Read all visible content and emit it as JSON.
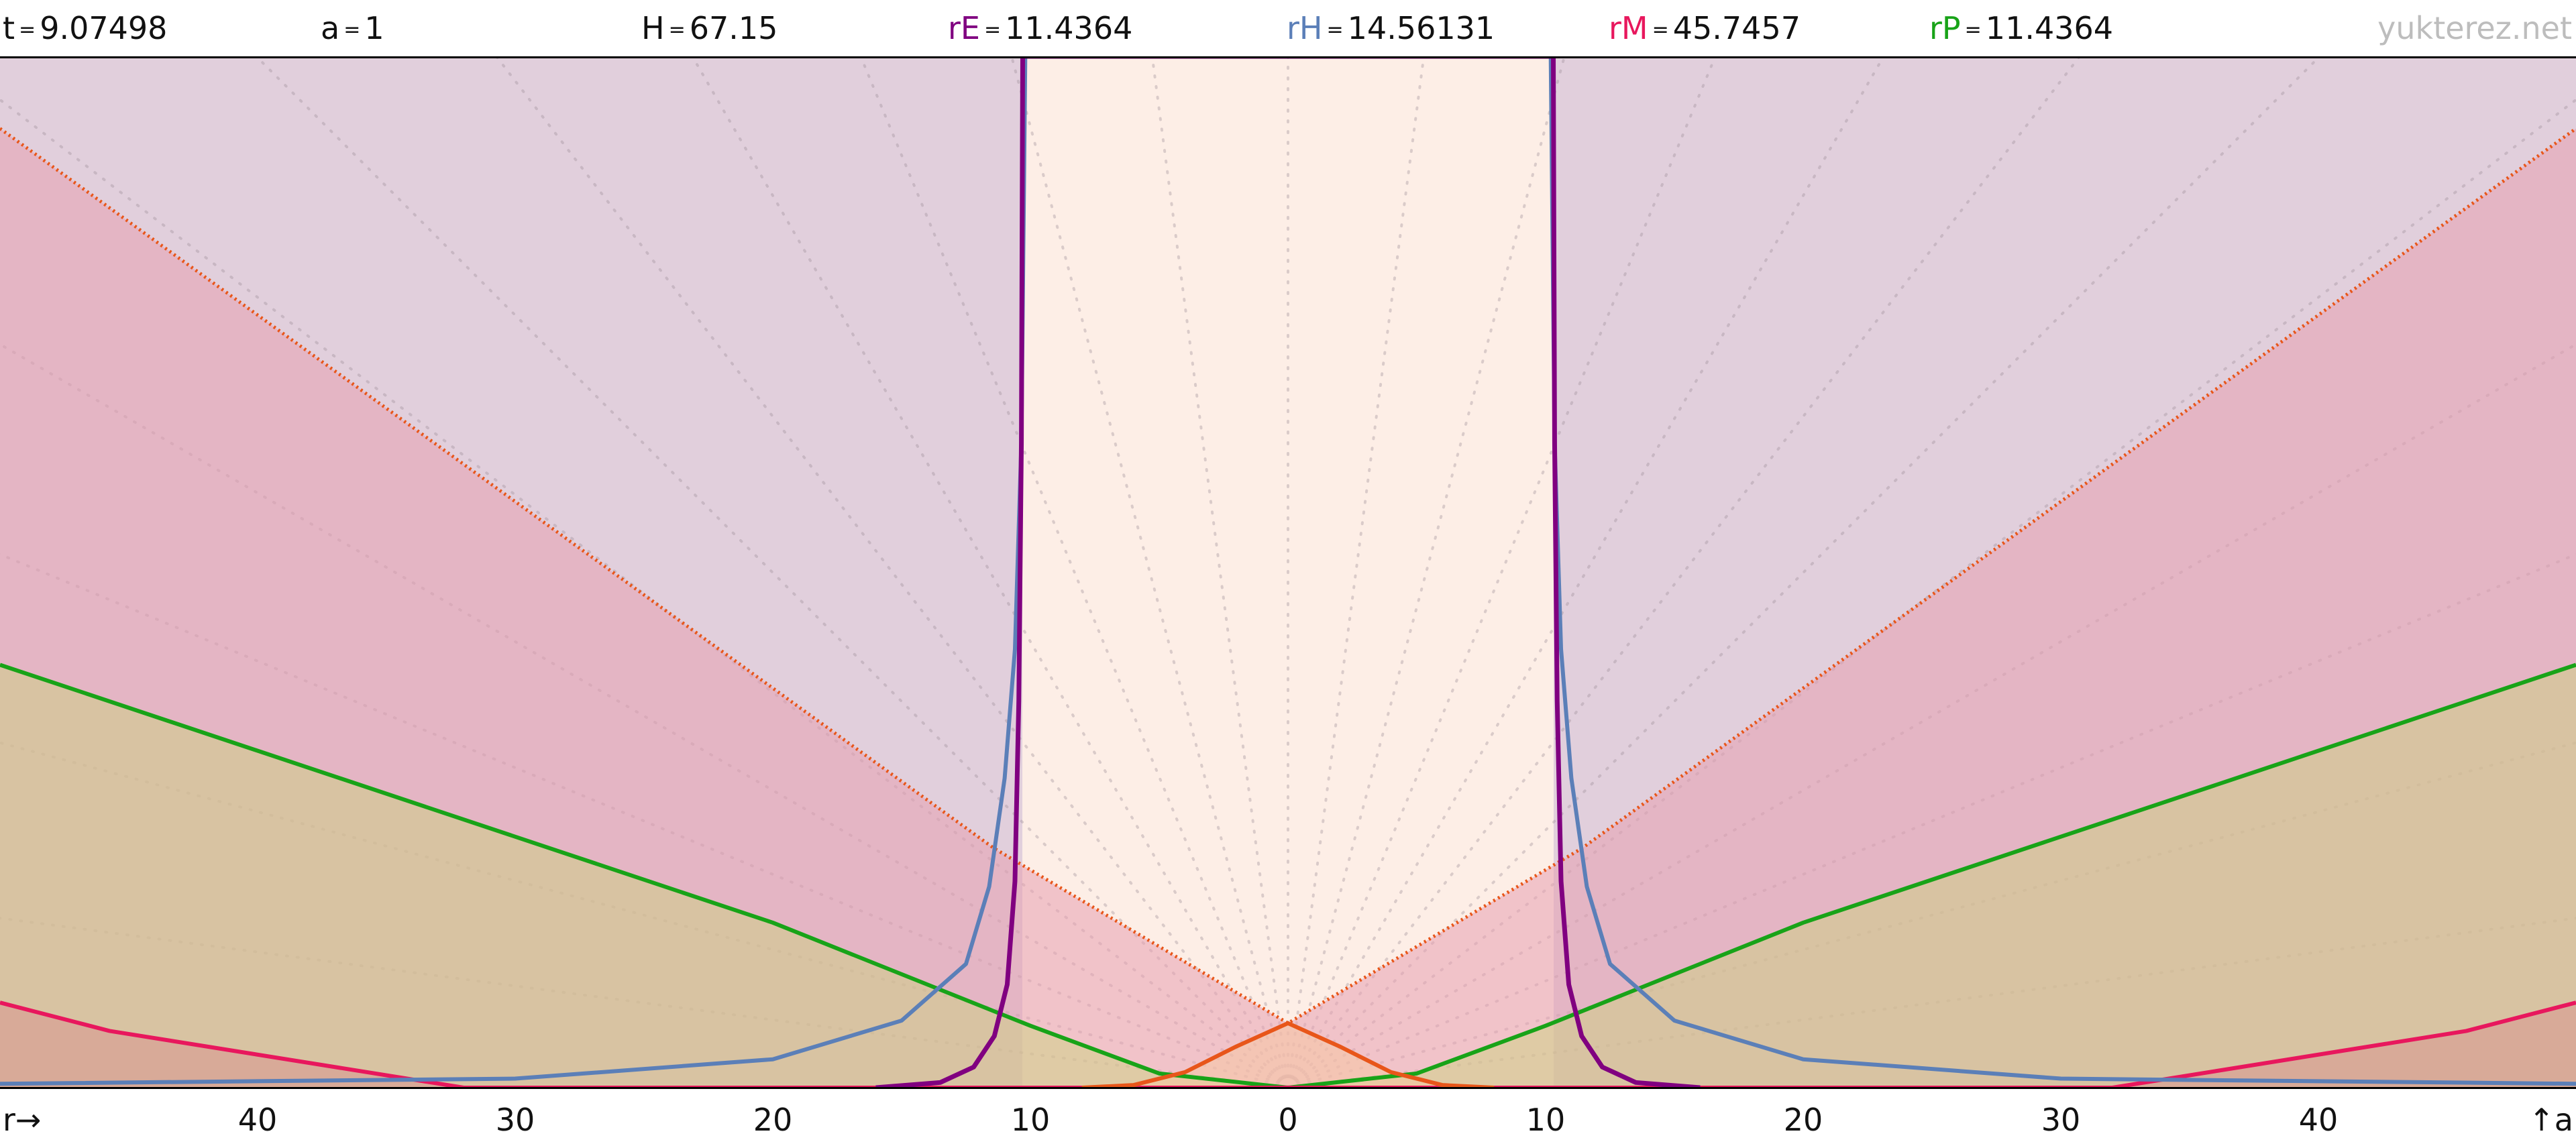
{
  "header": {
    "t": {
      "label": "t",
      "value": "9.07498",
      "color": "#111111"
    },
    "a": {
      "label": "a",
      "value": "1",
      "color": "#111111"
    },
    "H": {
      "label": "H",
      "value": "67.15",
      "color": "#111111"
    },
    "rE": {
      "label": "rE",
      "value": "11.4364",
      "color": "#800080"
    },
    "rH": {
      "label": "rH",
      "value": "14.56131",
      "color": "#5b7fb8"
    },
    "rM": {
      "label": "rM",
      "value": "45.7457",
      "color": "#e8175d"
    },
    "rP": {
      "label": "rP",
      "value": "11.4364",
      "color": "#18a318"
    },
    "site": "yukterez.net"
  },
  "axes": {
    "x_label": "r→",
    "y_label": "↑a",
    "x_tick_labels": [
      "40",
      "30",
      "20",
      "10",
      "0",
      "10",
      "20",
      "30",
      "40"
    ]
  },
  "chart_data": {
    "type": "line",
    "x_range": [
      -50,
      50
    ],
    "y_range": [
      0,
      40
    ],
    "x_ticks": [
      -40,
      -30,
      -20,
      -10,
      0,
      10,
      20,
      30,
      40
    ],
    "parameters": {
      "rE": 11.4364,
      "rH": 14.56131,
      "rM": 45.7457,
      "rP": 11.4364
    },
    "series": [
      {
        "key": "orange_dotted",
        "color": "#e8561a",
        "style": "dotted",
        "points": [
          [
            -50,
            37.2
          ],
          [
            -11.4364,
            9.3
          ],
          [
            0,
            2.5
          ],
          [
            11.4364,
            9.3
          ],
          [
            50,
            37.2
          ]
        ]
      },
      {
        "key": "green",
        "color": "#18a318",
        "style": "solid",
        "points": [
          [
            -50,
            16.4
          ],
          [
            -20,
            6.4
          ],
          [
            -10,
            2.4
          ],
          [
            -5,
            0.55
          ],
          [
            0,
            0
          ],
          [
            5,
            0.55
          ],
          [
            10,
            2.4
          ],
          [
            20,
            6.4
          ],
          [
            50,
            16.4
          ]
        ]
      },
      {
        "key": "red",
        "color": "#e8175d",
        "style": "solid",
        "points": [
          [
            -50,
            3.3
          ],
          [
            -45.7457,
            2.2
          ],
          [
            -32,
            0
          ],
          [
            32,
            0
          ],
          [
            45.7457,
            2.2
          ],
          [
            50,
            3.3
          ]
        ]
      },
      {
        "key": "orange",
        "color": "#e8561a",
        "style": "solid",
        "points": [
          [
            -8,
            0
          ],
          [
            -6,
            0.1
          ],
          [
            -4,
            0.6
          ],
          [
            -2,
            1.6
          ],
          [
            0,
            2.5
          ],
          [
            2,
            1.6
          ],
          [
            4,
            0.6
          ],
          [
            6,
            0.1
          ],
          [
            8,
            0
          ]
        ]
      },
      {
        "key": "blue",
        "color": "#5b7fb8",
        "style": "solid",
        "points": [
          [
            -50,
            0.15
          ],
          [
            -30,
            0.35
          ],
          [
            -20,
            1.1
          ],
          [
            -15,
            2.6
          ],
          [
            -12.5,
            4.8
          ],
          [
            -11.6,
            7.8
          ],
          [
            -11,
            12
          ],
          [
            -10.6,
            17
          ],
          [
            -10.35,
            25
          ],
          [
            -10.2,
            40
          ],
          [
            10.2,
            40
          ],
          [
            10.35,
            25
          ],
          [
            10.6,
            17
          ],
          [
            11,
            12
          ],
          [
            11.6,
            7.8
          ],
          [
            12.5,
            4.8
          ],
          [
            15,
            2.6
          ],
          [
            20,
            1.1
          ],
          [
            30,
            0.35
          ],
          [
            50,
            0.15
          ]
        ]
      },
      {
        "key": "purple",
        "color": "#800080",
        "style": "solid",
        "points": [
          [
            -16,
            0
          ],
          [
            -13.5,
            0.2
          ],
          [
            -12.2,
            0.8
          ],
          [
            -11.4,
            2
          ],
          [
            -10.9,
            4
          ],
          [
            -10.6,
            8
          ],
          [
            -10.45,
            15
          ],
          [
            -10.35,
            25
          ],
          [
            -10.3,
            40
          ],
          [
            10.3,
            40
          ],
          [
            10.35,
            25
          ],
          [
            10.45,
            15
          ],
          [
            10.6,
            8
          ],
          [
            10.9,
            4
          ],
          [
            11.4,
            2
          ],
          [
            12.2,
            0.8
          ],
          [
            13.5,
            0.2
          ],
          [
            16,
            0
          ]
        ]
      }
    ],
    "grid": "dotted radial rays from origin",
    "legend": "none"
  }
}
